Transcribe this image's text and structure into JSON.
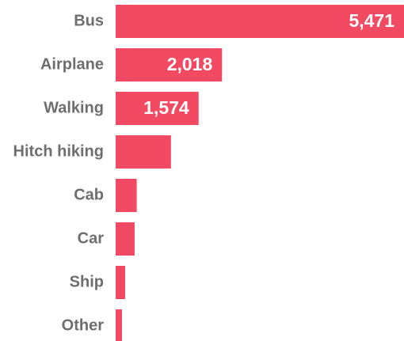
{
  "chart_data": {
    "type": "bar",
    "orientation": "horizontal",
    "color": "#f24a62",
    "categories": [
      "Bus",
      "Airplane",
      "Walking",
      "Hitch hiking",
      "Cab",
      "Car",
      "Ship",
      "Other"
    ],
    "values": [
      5471,
      2018,
      1574,
      1050,
      400,
      360,
      180,
      120
    ],
    "value_labels": [
      "5,471",
      "2,018",
      "1,574",
      null,
      null,
      null,
      null,
      null
    ]
  }
}
